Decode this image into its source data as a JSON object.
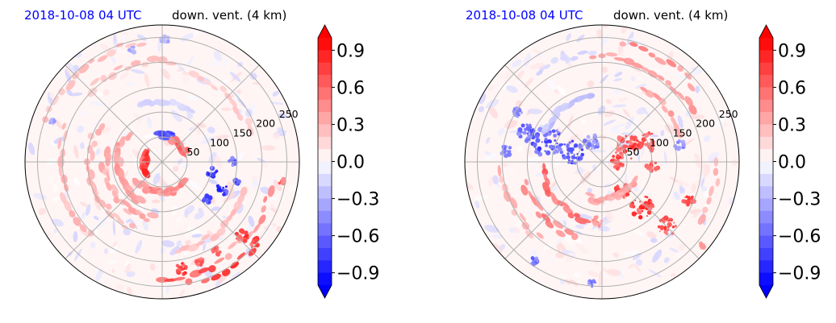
{
  "panels": [
    {
      "title_time": "2018-10-08 04 UTC",
      "title_var": "down. vent. (4 km)",
      "chart_data": {
        "type": "heatmap",
        "projection": "polar",
        "radial_ticks": [
          50,
          100,
          150,
          200,
          250
        ],
        "grid": true,
        "value_range": [
          -1.0,
          1.0
        ],
        "colormap": "bwr",
        "colorbar": {
          "ticks": [
            0.9,
            0.6,
            0.3,
            0.0,
            -0.3,
            -0.6,
            -0.9
          ],
          "tick_labels": [
            "0.9",
            "0.6",
            "0.3",
            "0.0",
            "−0.3",
            "−0.6",
            "−0.9"
          ],
          "extend": "both",
          "placement": "right"
        },
        "features": [
          {
            "kind": "arc",
            "r": 35,
            "t0": 150,
            "t1": 215,
            "v": 0.9
          },
          {
            "kind": "arc",
            "r": 50,
            "t0": 20,
            "t1": 70,
            "v": 0.7
          },
          {
            "kind": "arc",
            "r": 55,
            "t0": 70,
            "t1": 95,
            "v": -0.85
          },
          {
            "kind": "arc",
            "r": 60,
            "t0": 220,
            "t1": 320,
            "v": 0.55
          },
          {
            "kind": "arc",
            "r": 90,
            "t0": 140,
            "t1": 240,
            "v": 0.45
          },
          {
            "kind": "arc",
            "r": 115,
            "t0": 170,
            "t1": 260,
            "v": 0.4
          },
          {
            "kind": "arc",
            "r": 145,
            "t0": 150,
            "t1": 245,
            "v": 0.35
          },
          {
            "kind": "arc",
            "r": 205,
            "t0": 160,
            "t1": 225,
            "v": 0.35
          },
          {
            "kind": "arc",
            "r": 120,
            "t0": 60,
            "t1": 110,
            "v": -0.2
          },
          {
            "kind": "arc",
            "r": 205,
            "t0": 85,
            "t1": 135,
            "v": 0.3
          },
          {
            "kind": "arc",
            "r": 245,
            "t0": 100,
            "t1": 160,
            "v": 0.3
          },
          {
            "kind": "arc",
            "r": 185,
            "t0": 20,
            "t1": 70,
            "v": 0.25
          },
          {
            "kind": "arc",
            "r": 225,
            "t0": 300,
            "t1": 345,
            "v": 0.5
          },
          {
            "kind": "arc",
            "r": 250,
            "t0": 290,
            "t1": 320,
            "v": 0.95
          },
          {
            "kind": "arc",
            "r": 240,
            "t0": 270,
            "t1": 295,
            "v": 0.85
          },
          {
            "kind": "arc",
            "r": 180,
            "t0": 280,
            "t1": 340,
            "v": 0.3
          },
          {
            "kind": "blob",
            "x": 100,
            "y": -20,
            "r": 10,
            "v": -0.9
          },
          {
            "kind": "blob",
            "x": 120,
            "y": -55,
            "r": 12,
            "v": -0.95
          },
          {
            "kind": "blob",
            "x": 90,
            "y": -75,
            "r": 8,
            "v": -0.8
          },
          {
            "kind": "blob",
            "x": 140,
            "y": 0,
            "r": 8,
            "v": -0.7
          },
          {
            "kind": "blob",
            "x": 150,
            "y": -40,
            "r": 7,
            "v": -0.85
          },
          {
            "kind": "blob",
            "x": 160,
            "y": -150,
            "r": 12,
            "v": 0.9
          },
          {
            "kind": "blob",
            "x": 40,
            "y": -215,
            "r": 12,
            "v": 0.95
          },
          {
            "kind": "blob",
            "x": 75,
            "y": -200,
            "r": 8,
            "v": 0.85
          },
          {
            "kind": "blob",
            "x": 185,
            "y": -165,
            "r": 7,
            "v": 0.85
          },
          {
            "kind": "blob",
            "x": 110,
            "y": -180,
            "r": 9,
            "v": 0.7
          },
          {
            "kind": "blob",
            "x": 5,
            "y": 245,
            "r": 8,
            "v": -0.45
          },
          {
            "kind": "blob",
            "x": -220,
            "y": 80,
            "r": 7,
            "v": -0.45
          },
          {
            "kind": "blob",
            "x": -60,
            "y": 225,
            "r": 6,
            "v": -0.4
          },
          {
            "kind": "blob",
            "x": 240,
            "y": -40,
            "r": 6,
            "v": 0.7
          }
        ]
      }
    },
    {
      "title_time": "2018-10-08 04 UTC",
      "title_var": "down. vent. (4 km)",
      "chart_data": {
        "type": "heatmap",
        "projection": "polar",
        "radial_ticks": [
          50,
          100,
          150,
          200,
          250
        ],
        "grid": true,
        "value_range": [
          -1.0,
          1.0
        ],
        "colormap": "bwr",
        "colorbar": {
          "ticks": [
            0.9,
            0.6,
            0.3,
            0.0,
            -0.3,
            -0.6,
            -0.9
          ],
          "tick_labels": [
            "0.9",
            "0.6",
            "0.3",
            "0.0",
            "−0.3",
            "−0.6",
            "−0.9"
          ],
          "extend": "both",
          "placement": "right"
        },
        "features": [
          {
            "kind": "blob",
            "x": -110,
            "y": 40,
            "r": 30,
            "v": -0.8
          },
          {
            "kind": "blob",
            "x": -60,
            "y": 20,
            "r": 25,
            "v": -0.85
          },
          {
            "kind": "blob",
            "x": -150,
            "y": 60,
            "r": 18,
            "v": -0.75
          },
          {
            "kind": "blob",
            "x": -20,
            "y": 40,
            "r": 15,
            "v": -0.6
          },
          {
            "kind": "blob",
            "x": -190,
            "y": 20,
            "r": 12,
            "v": -0.6
          },
          {
            "kind": "blob",
            "x": -170,
            "y": 100,
            "r": 10,
            "v": -0.55
          },
          {
            "kind": "blob",
            "x": 50,
            "y": 30,
            "r": 25,
            "v": 0.9
          },
          {
            "kind": "blob",
            "x": 90,
            "y": 40,
            "r": 20,
            "v": 0.8
          },
          {
            "kind": "blob",
            "x": 30,
            "y": 0,
            "r": 14,
            "v": 0.85
          },
          {
            "kind": "blob",
            "x": 100,
            "y": -10,
            "r": 12,
            "v": 0.8
          },
          {
            "kind": "blob",
            "x": 80,
            "y": -90,
            "r": 22,
            "v": 0.95
          },
          {
            "kind": "blob",
            "x": 130,
            "y": -130,
            "r": 18,
            "v": 0.9
          },
          {
            "kind": "blob",
            "x": 40,
            "y": -60,
            "r": 15,
            "v": 0.85
          },
          {
            "kind": "blob",
            "x": 175,
            "y": -80,
            "r": 12,
            "v": 0.9
          },
          {
            "kind": "blob",
            "x": -10,
            "y": -120,
            "r": 10,
            "v": 0.5
          },
          {
            "kind": "blob",
            "x": 155,
            "y": 35,
            "r": 10,
            "v": -0.55
          },
          {
            "kind": "blob",
            "x": -135,
            "y": -200,
            "r": 8,
            "v": -0.65
          },
          {
            "kind": "blob",
            "x": -20,
            "y": -245,
            "r": 7,
            "v": -0.6
          },
          {
            "kind": "blob",
            "x": 200,
            "y": -170,
            "r": 8,
            "v": 0.5
          },
          {
            "kind": "arc",
            "r": 120,
            "t0": 185,
            "t1": 255,
            "v": 0.7
          },
          {
            "kind": "arc",
            "r": 160,
            "t0": 195,
            "t1": 250,
            "v": 0.6
          },
          {
            "kind": "arc",
            "r": 200,
            "t0": 185,
            "t1": 230,
            "v": 0.35
          },
          {
            "kind": "arc",
            "r": 210,
            "t0": 30,
            "t1": 95,
            "v": 0.5
          },
          {
            "kind": "arc",
            "r": 170,
            "t0": 20,
            "t1": 60,
            "v": 0.45
          },
          {
            "kind": "arc",
            "r": 240,
            "t0": 40,
            "t1": 80,
            "v": 0.55
          },
          {
            "kind": "arc",
            "r": 220,
            "t0": 95,
            "t1": 125,
            "v": -0.2
          },
          {
            "kind": "arc",
            "r": 230,
            "t0": 330,
            "t1": 360,
            "v": 0.4
          },
          {
            "kind": "arc",
            "r": 130,
            "t0": 100,
            "t1": 150,
            "v": -0.3
          },
          {
            "kind": "arc",
            "r": 75,
            "t0": 250,
            "t1": 330,
            "v": 0.45
          }
        ]
      }
    }
  ],
  "colors": {
    "time_title": "#0000ff",
    "negative_max": "#0000ff",
    "zero": "#ffffff",
    "positive_max": "#ff0000",
    "grid": "#b0b0b0"
  }
}
